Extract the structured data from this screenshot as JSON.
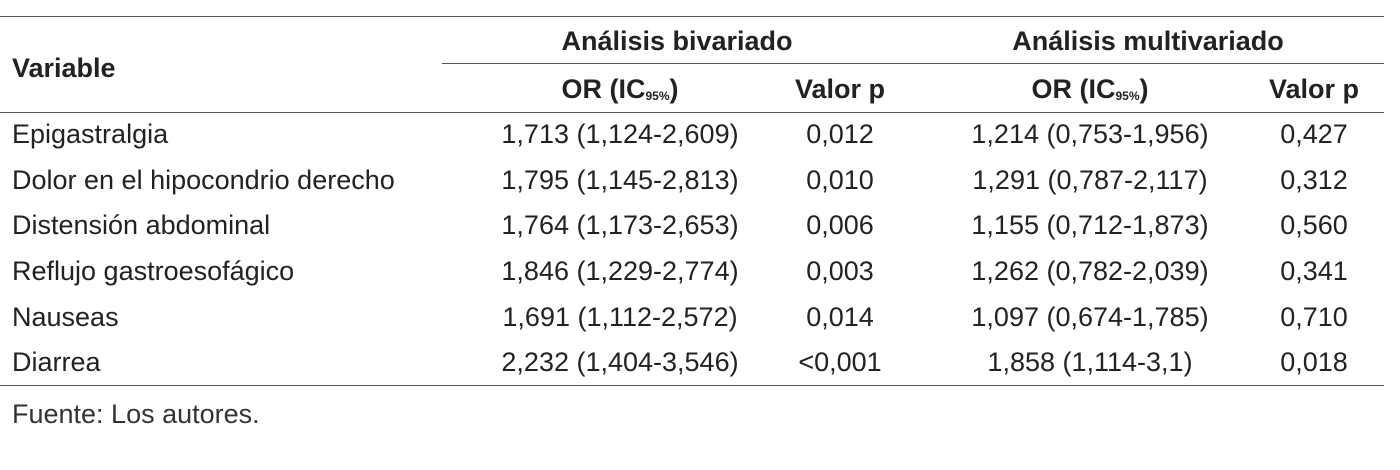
{
  "header": {
    "variable": "Variable",
    "group_bivariate": "Análisis bivariado",
    "group_multivariate": "Análisis multivariado",
    "or_label": "OR (IC",
    "or_sub": "95%",
    "or_close": ")",
    "p_label": "Valor p"
  },
  "rows": [
    {
      "variable": "Epigastralgia",
      "or_biv": "1,713 (1,124-2,609)",
      "p_biv": "0,012",
      "or_mult": "1,214 (0,753-1,956)",
      "p_mult": "0,427"
    },
    {
      "variable": "Dolor en el hipocondrio derecho",
      "or_biv": "1,795 (1,145-2,813)",
      "p_biv": "0,010",
      "or_mult": "1,291 (0,787-2,117)",
      "p_mult": "0,312"
    },
    {
      "variable": "Distensión abdominal",
      "or_biv": "1,764 (1,173-2,653)",
      "p_biv": "0,006",
      "or_mult": "1,155 (0,712-1,873)",
      "p_mult": "0,560"
    },
    {
      "variable": "Reflujo gastroesofágico",
      "or_biv": "1,846 (1,229-2,774)",
      "p_biv": "0,003",
      "or_mult": "1,262 (0,782-2,039)",
      "p_mult": "0,341"
    },
    {
      "variable": "Nauseas",
      "or_biv": "1,691 (1,112-2,572)",
      "p_biv": "0,014",
      "or_mult": "1,097 (0,674-1,785)",
      "p_mult": "0,710"
    },
    {
      "variable": "Diarrea",
      "or_biv": "2,232 (1,404-3,546)",
      "p_biv": "<0,001",
      "or_mult": "1,858 (1,114-3,1)",
      "p_mult": "0,018"
    }
  ],
  "footnote": "Fuente: Los autores."
}
